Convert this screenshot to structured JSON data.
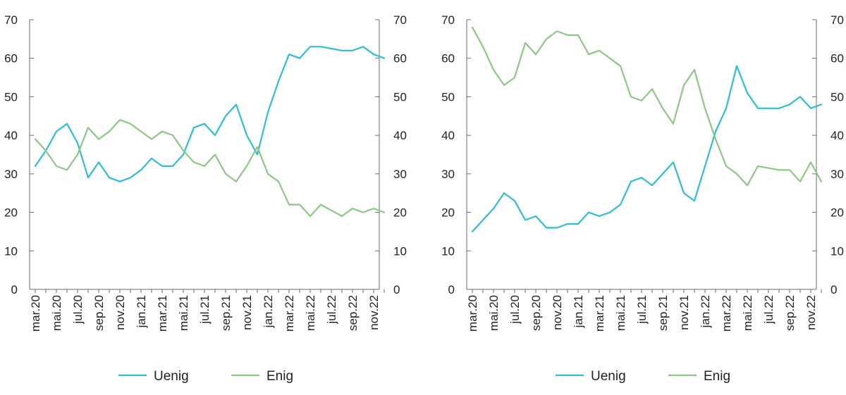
{
  "colors": {
    "uenig": "#2fbdcf",
    "enig": "#8ec686",
    "axis": "#6d6e71",
    "text": "#222222"
  },
  "chart_data": [
    {
      "type": "line",
      "ylim": [
        0,
        70
      ],
      "yticks": [
        "0",
        "10",
        "20",
        "30",
        "40",
        "50",
        "60",
        "70"
      ],
      "xtick_labels": [
        "mar.20",
        "mai.20",
        "jul.20",
        "sep.20",
        "nov.20",
        "jan.21",
        "mar.21",
        "mai.21",
        "jul.21",
        "sep.21",
        "nov.21",
        "jan.22",
        "mar.22",
        "mai.22",
        "jul.22",
        "sep.22",
        "nov.22"
      ],
      "legend": [
        "Uenig",
        "Enig"
      ],
      "series": [
        {
          "name": "Uenig",
          "values": [
            32,
            36,
            41,
            43,
            38,
            29,
            33,
            29,
            28,
            29,
            31,
            34,
            32,
            32,
            35,
            42,
            43,
            40,
            45,
            48,
            40,
            35,
            46,
            54,
            61,
            60,
            63,
            63,
            62.5,
            62,
            62,
            63,
            61,
            60
          ]
        },
        {
          "name": "Enig",
          "values": [
            39,
            36,
            32,
            31,
            35,
            42,
            39,
            41,
            44,
            43,
            41,
            39,
            41,
            40,
            36,
            33,
            32,
            35,
            30,
            28,
            32,
            37,
            30,
            28,
            22,
            22,
            19,
            22,
            20.5,
            19,
            21,
            20,
            21,
            20
          ]
        }
      ]
    },
    {
      "type": "line",
      "ylim": [
        0,
        70
      ],
      "yticks": [
        "0",
        "10",
        "20",
        "30",
        "40",
        "50",
        "60",
        "70"
      ],
      "xtick_labels": [
        "mar.20",
        "mai.20",
        "jul.20",
        "sep.20",
        "nov.20",
        "jan.21",
        "mar.21",
        "mai.21",
        "jul.21",
        "sep.21",
        "nov.21",
        "jan.22",
        "mar.22",
        "mai.22",
        "jul.22",
        "sep.22",
        "nov.22"
      ],
      "legend": [
        "Uenig",
        "Enig"
      ],
      "series": [
        {
          "name": "Uenig",
          "values": [
            15,
            18,
            21,
            25,
            23,
            18,
            19,
            16,
            16,
            17,
            17,
            20,
            19,
            20,
            22,
            28,
            29,
            27,
            30,
            33,
            25,
            23,
            32,
            41,
            47,
            58,
            51,
            47,
            47,
            47,
            48,
            50,
            47,
            48
          ]
        },
        {
          "name": "Enig",
          "values": [
            68,
            63,
            57,
            53,
            55,
            64,
            61,
            65,
            67,
            66,
            66,
            61,
            62,
            60,
            58,
            50,
            49,
            52,
            47,
            43,
            53,
            57,
            47,
            39,
            32,
            30,
            27,
            32,
            31.5,
            31,
            31,
            28,
            33,
            28
          ]
        }
      ]
    }
  ]
}
